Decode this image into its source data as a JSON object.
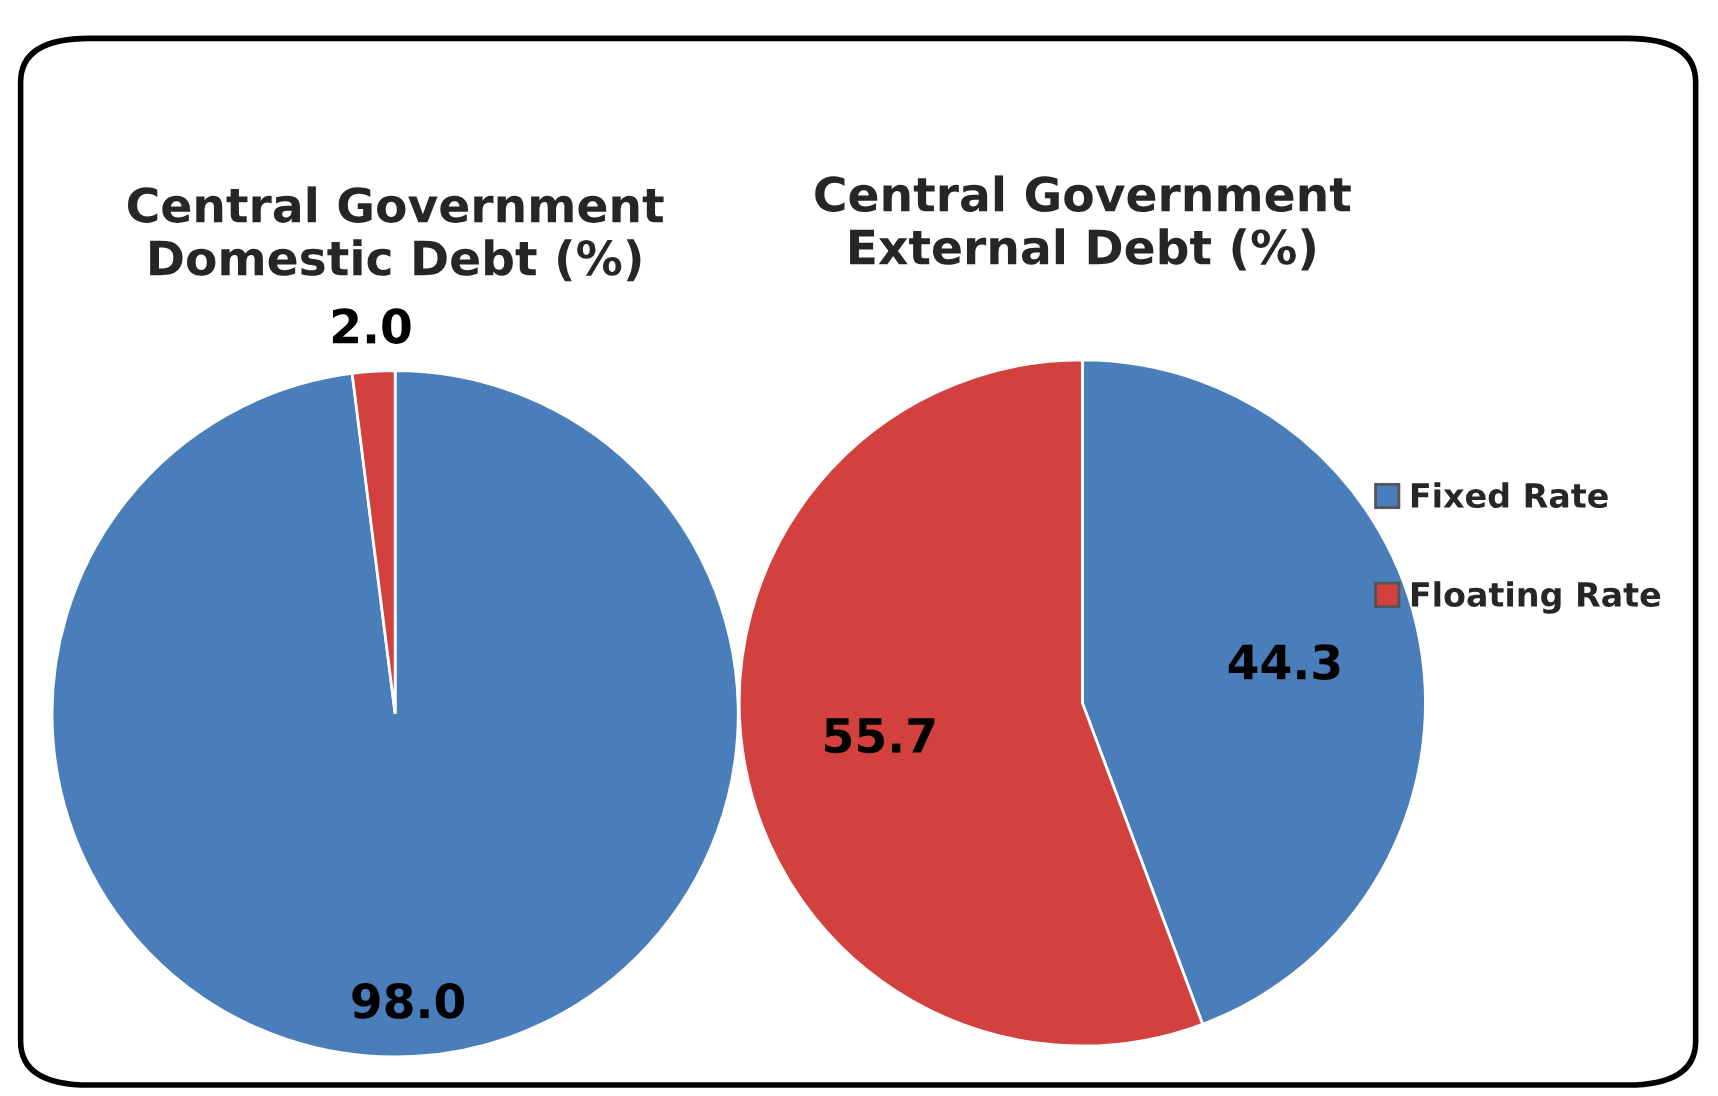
{
  "chart_data": [
    {
      "type": "pie",
      "title": "Central Government\nDomestic Debt (%)",
      "categories": [
        "Fixed Rate",
        "Floating Rate"
      ],
      "values": [
        98.0,
        2.0
      ],
      "value_labels": [
        "98.0",
        "2.0"
      ],
      "colors": [
        "#4a7ebb",
        "#d2413e"
      ],
      "legend": "right"
    },
    {
      "type": "pie",
      "title": "Central Government\nExternal Debt (%)",
      "categories": [
        null,
        null
      ],
      "values": [
        44.3,
        55.7
      ],
      "value_labels": [
        "44.3",
        "55.7"
      ],
      "colors": [
        "#4a7ebb",
        "#d2413e"
      ]
    }
  ]
}
